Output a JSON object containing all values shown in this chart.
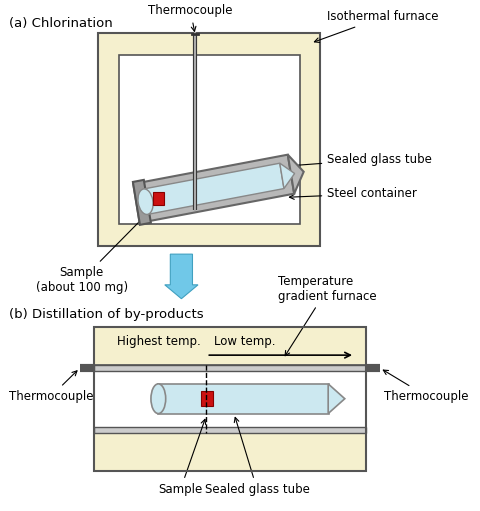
{
  "bg_color": "#ffffff",
  "furnace_fill": "#f5f0ce",
  "furnace_border": "#555555",
  "steel_fill": "#b8b8b8",
  "steel_border": "#666666",
  "glass_fill": "#cce8f0",
  "glass_border": "#888888",
  "sample_fill": "#cc1111",
  "arrow_blue": "#70c8e8",
  "text_color": "#000000",
  "label_a": "(a) Chlorination",
  "label_b": "(b) Distillation of by-products",
  "label_thermocouple": "Thermocouple",
  "label_isothermal": "Isothermal furnace",
  "label_sealed_glass": "Sealed glass tube",
  "label_steel": "Steel container",
  "label_sample_a": "Sample\n(about 100 mg)",
  "label_sample_b": "Sample",
  "label_sealed_glass_b": "Sealed glass tube",
  "label_thermocouple_b_left": "Thermocouple",
  "label_thermocouple_b_right": "Thermocouple",
  "label_temp_gradient": "Temperature\ngradient furnace",
  "label_highest_temp": "Highest temp.",
  "label_low_temp": "Low temp."
}
